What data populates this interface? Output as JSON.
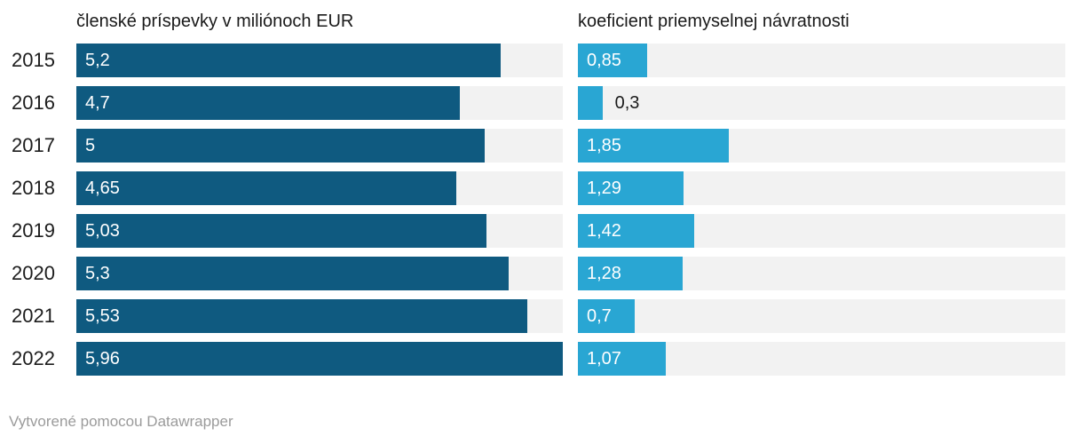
{
  "chart_data": {
    "type": "bar",
    "orientation": "horizontal",
    "categories": [
      "2015",
      "2016",
      "2017",
      "2018",
      "2019",
      "2020",
      "2021",
      "2022"
    ],
    "series": [
      {
        "name": "členské príspevky v miliónoch EUR",
        "values": [
          5.2,
          4.7,
          5,
          4.65,
          5.03,
          5.3,
          5.53,
          5.96
        ],
        "labels": [
          "5,2",
          "4,7",
          "5",
          "4,65",
          "5,03",
          "5,3",
          "5,53",
          "5,96"
        ],
        "color": "#0f5a80"
      },
      {
        "name": "koeficient priemyselnej návratnosti",
        "values": [
          0.85,
          0.3,
          1.85,
          1.29,
          1.42,
          1.28,
          0.7,
          1.07
        ],
        "labels": [
          "0,85",
          "0,3",
          "1,85",
          "1,29",
          "1,42",
          "1,28",
          "0,7",
          "1,07"
        ],
        "color": "#29a6d3"
      }
    ],
    "xlim": [
      0,
      5.96
    ],
    "grid": false,
    "legend": "column-headers",
    "value_label_position": "inside-start",
    "track_color": "#f2f2f2",
    "outside_label_color": "#1a1a1a",
    "inside_label_color": "#ffffff"
  },
  "footer": {
    "text": "Vytvorené pomocou Datawrapper"
  }
}
